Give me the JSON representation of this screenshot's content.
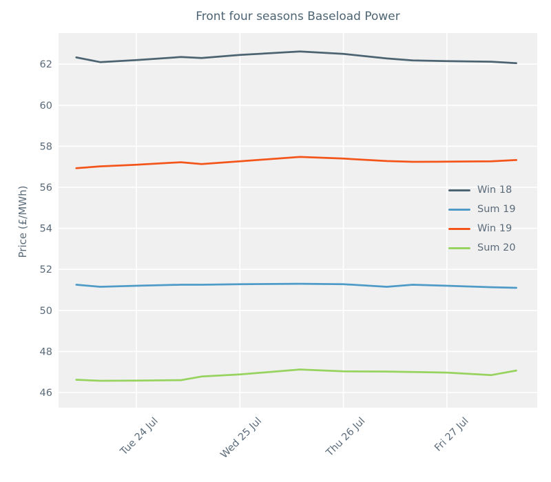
{
  "figure": {
    "title": "Front four seasons Baseload Power",
    "y_axis_title": "Price (£/MWh)",
    "colors": {
      "figure_bg": "#ffffff",
      "plot_bg": "#f0f0f0",
      "grid": "#ffffff",
      "tick_text": "#5b6b7a",
      "title_text": "#4d6473"
    }
  },
  "chart_data": {
    "type": "line",
    "title": "Front four seasons Baseload Power",
    "xlabel": "",
    "ylabel": "Price (£/MWh)",
    "grid": true,
    "legend_position": "center-right",
    "x_unit": "days (0 = Mon 23 Jul 00:00, shared sample times for all series)",
    "x": [
      0.42,
      0.65,
      1.0,
      1.43,
      1.63,
      2.0,
      2.58,
      3.0,
      3.42,
      3.67,
      4.0,
      4.43,
      4.67
    ],
    "series": [
      {
        "name": "Win 18",
        "color": "#4c6472",
        "values": [
          62.33,
          62.1,
          62.2,
          62.35,
          62.3,
          62.45,
          62.62,
          62.5,
          62.28,
          62.18,
          62.15,
          62.12,
          62.05
        ]
      },
      {
        "name": "Sum 19",
        "color": "#4f9bc8",
        "values": [
          51.25,
          51.15,
          51.2,
          51.25,
          51.25,
          51.28,
          51.3,
          51.28,
          51.15,
          51.25,
          51.2,
          51.13,
          51.1
        ]
      },
      {
        "name": "Win 19",
        "color": "#f4551b",
        "values": [
          56.93,
          57.02,
          57.1,
          57.22,
          57.13,
          57.27,
          57.48,
          57.4,
          57.28,
          57.24,
          57.25,
          57.27,
          57.33
        ]
      },
      {
        "name": "Sum 20",
        "color": "#97d35f",
        "values": [
          46.62,
          46.57,
          46.58,
          46.6,
          46.78,
          46.88,
          47.12,
          47.03,
          47.02,
          47.0,
          46.97,
          46.85,
          47.07
        ]
      }
    ],
    "x_ticks": [
      {
        "label": "Tue 24 Jul",
        "day": 1
      },
      {
        "label": "Wed 25 Jul",
        "day": 2
      },
      {
        "label": "Thu 26 Jul",
        "day": 3
      },
      {
        "label": "Fri 27 Jul",
        "day": 4
      }
    ],
    "y_ticks": [
      46,
      48,
      50,
      52,
      54,
      56,
      58,
      60,
      62
    ],
    "ylim": [
      45.25,
      63.55
    ],
    "xlim_days": [
      0.25,
      4.87
    ]
  }
}
